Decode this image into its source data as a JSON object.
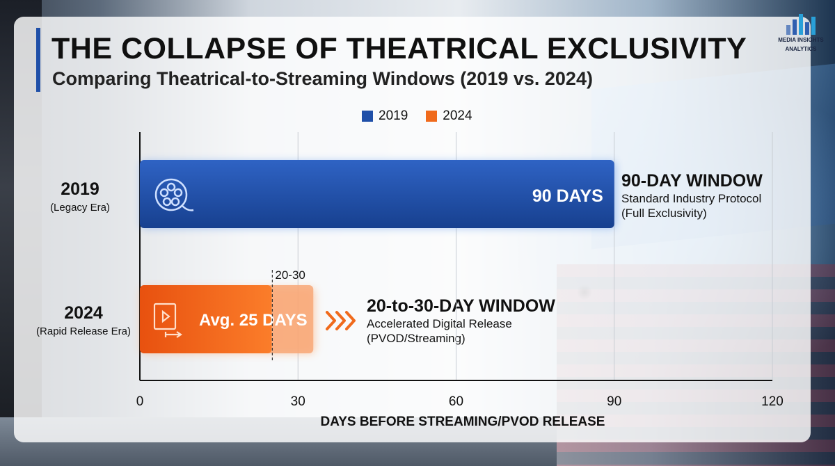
{
  "header": {
    "title": "THE COLLAPSE OF THEATRICAL EXCLUSIVITY",
    "subtitle": "Comparing Theatrical-to-Streaming Windows (2019 vs. 2024)"
  },
  "brand": {
    "line1": "MEDIA INSIGHTS",
    "line2": "ANALYTICS"
  },
  "colors": {
    "series_2019": "#1f4fa8",
    "series_2024": "#f06a1c",
    "accent": "#1f4fa8"
  },
  "rows": [
    {
      "year": "2019",
      "era": "(Legacy Era)",
      "bar_label": "90 DAYS",
      "icon": "film-reel-icon",
      "annotation_title": "90-DAY WINDOW",
      "annotation_lines": [
        "Standard Industry Protocol",
        "(Full Exclusivity)"
      ]
    },
    {
      "year": "2024",
      "era": "(Rapid Release Era)",
      "bar_label": "Avg. 25 DAYS",
      "icon": "film-streaming-icon",
      "range_label": "20-30",
      "annotation_title": "20-to-30-DAY WINDOW",
      "annotation_lines": [
        "Accelerated Digital Release",
        "(PVOD/Streaming)"
      ],
      "arrow_icon": "triple-chevron-right-icon"
    }
  ],
  "chart_data": {
    "type": "bar",
    "orientation": "horizontal",
    "categories": [
      "2019",
      "2024"
    ],
    "series": [
      {
        "name": "2019",
        "values": [
          90,
          null
        ]
      },
      {
        "name": "2024",
        "values": [
          null,
          25
        ],
        "range": [
          20,
          30
        ]
      }
    ],
    "xlabel": "DAYS BEFORE STREAMING/PVOD RELEASE",
    "xlim": [
      0,
      120
    ],
    "xticks": [
      "0",
      "30",
      "60",
      "90",
      "120"
    ],
    "grid": true,
    "legend": [
      "2019",
      "2024"
    ],
    "legend_position": "top-center"
  }
}
